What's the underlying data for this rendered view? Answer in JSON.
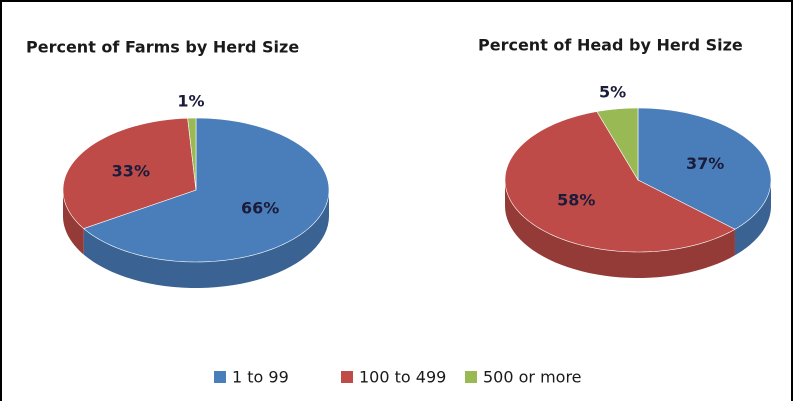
{
  "legend": {
    "labels": [
      "1 to 99",
      "100 to 499",
      "500 or more"
    ],
    "colors": [
      "#4a7ebb",
      "#be4b48",
      "#98b954"
    ]
  },
  "chart_data": [
    {
      "type": "pie",
      "title": "Percent of Farms by Herd Size",
      "values": [
        66,
        33,
        1
      ],
      "value_labels": [
        "66%",
        "33%",
        "1%"
      ]
    },
    {
      "type": "pie",
      "title": "Percent of Head by Herd Size",
      "values": [
        37,
        58,
        5
      ],
      "value_labels": [
        "37%",
        "58%",
        "5%"
      ]
    }
  ]
}
